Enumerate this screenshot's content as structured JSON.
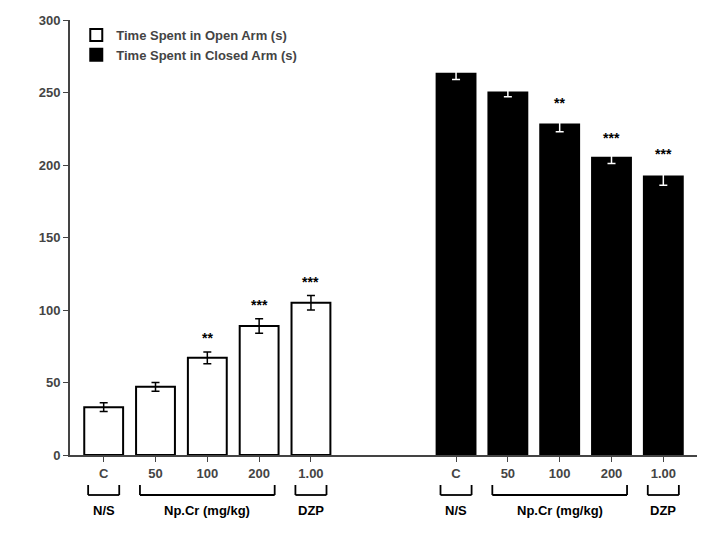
{
  "chart_data": {
    "type": "bar",
    "categories": [
      "C",
      "50",
      "100",
      "200",
      "1.00",
      "C",
      "50",
      "100",
      "200",
      "1.00"
    ],
    "series": [
      {
        "name": "Time Spent in Open Arm (s)",
        "color": "#ffffff",
        "values": [
          33,
          47,
          67,
          89,
          105,
          null,
          null,
          null,
          null,
          null
        ],
        "errors": [
          3,
          3,
          4,
          5,
          5,
          null,
          null,
          null,
          null,
          null
        ],
        "annotations": [
          null,
          null,
          "**",
          "***",
          "***",
          null,
          null,
          null,
          null,
          null
        ]
      },
      {
        "name": "Time Spent in Closed Arm (s)",
        "color": "#000000",
        "values": [
          null,
          null,
          null,
          null,
          null,
          263,
          250,
          228,
          205,
          192
        ],
        "errors": [
          null,
          null,
          null,
          null,
          null,
          4,
          3,
          5,
          4,
          6
        ],
        "annotations": [
          null,
          null,
          null,
          null,
          null,
          null,
          null,
          "**",
          "***",
          "***"
        ]
      }
    ],
    "groups": [
      {
        "label": "N/S",
        "span": [
          0,
          0
        ]
      },
      {
        "label": "Np.Cr (mg/kg)",
        "span": [
          1,
          3
        ]
      },
      {
        "label": "DZP",
        "span": [
          4,
          4
        ]
      },
      {
        "label": "N/S",
        "span": [
          5,
          5
        ]
      },
      {
        "label": "Np.Cr (mg/kg)",
        "span": [
          6,
          8
        ]
      },
      {
        "label": "DZP",
        "span": [
          9,
          9
        ]
      }
    ],
    "ylim": [
      0,
      300
    ],
    "yticks": [
      0,
      50,
      100,
      150,
      200,
      250,
      300
    ],
    "grid": false,
    "legend": "upper left"
  }
}
